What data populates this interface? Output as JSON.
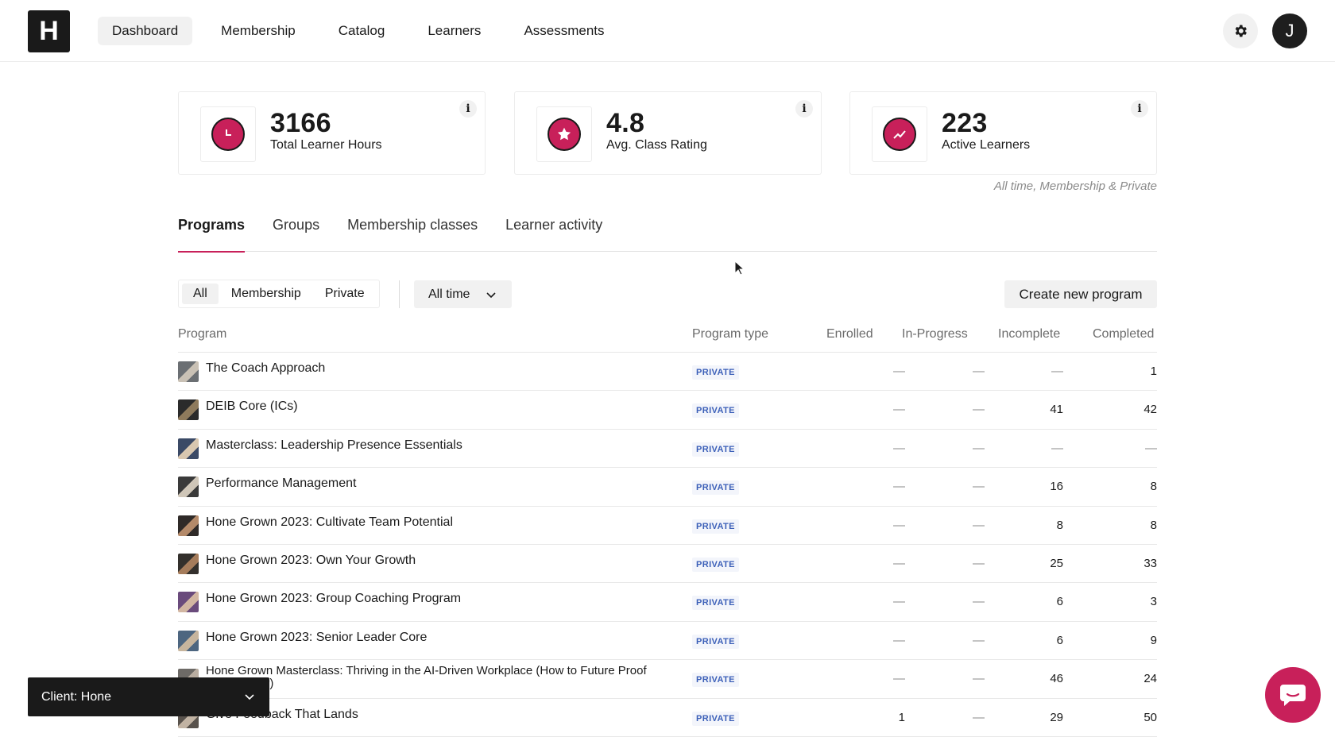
{
  "brand": {
    "logo_letter": "H"
  },
  "nav": {
    "items": [
      {
        "label": "Dashboard",
        "active": true
      },
      {
        "label": "Membership",
        "active": false
      },
      {
        "label": "Catalog",
        "active": false
      },
      {
        "label": "Learners",
        "active": false
      },
      {
        "label": "Assessments",
        "active": false
      }
    ],
    "settings_icon": "gear-icon",
    "avatar_initial": "J"
  },
  "stats": [
    {
      "value": "3166",
      "label": "Total Learner Hours",
      "icon": "clock-icon",
      "info": "i"
    },
    {
      "value": "4.8",
      "label": "Avg. Class Rating",
      "icon": "star-icon",
      "info": "i"
    },
    {
      "value": "223",
      "label": "Active Learners",
      "icon": "trend-up-icon",
      "info": "i"
    }
  ],
  "stats_note": "All time, Membership & Private",
  "accent_color": "#c8205a",
  "tabs": [
    {
      "label": "Programs",
      "active": true
    },
    {
      "label": "Groups",
      "active": false
    },
    {
      "label": "Membership classes",
      "active": false
    },
    {
      "label": "Learner activity",
      "active": false
    }
  ],
  "filters": {
    "segments": [
      {
        "label": "All",
        "active": true
      },
      {
        "label": "Membership",
        "active": false
      },
      {
        "label": "Private",
        "active": false
      }
    ],
    "time_range": "All time",
    "create_label": "Create new program"
  },
  "table": {
    "headers": [
      "Program",
      "Program type",
      "Enrolled",
      "In-Progress",
      "Incomplete",
      "Completed"
    ],
    "rows": [
      {
        "name": "The Coach Approach",
        "type": "PRIVATE",
        "enrolled": "—",
        "in_progress": "—",
        "incomplete": "—",
        "completed": "1"
      },
      {
        "name": "DEIB Core (ICs)",
        "type": "PRIVATE",
        "enrolled": "—",
        "in_progress": "—",
        "incomplete": "41",
        "completed": "42"
      },
      {
        "name": "Masterclass: Leadership Presence Essentials",
        "type": "PRIVATE",
        "enrolled": "—",
        "in_progress": "—",
        "incomplete": "—",
        "completed": "—"
      },
      {
        "name": "Performance Management",
        "type": "PRIVATE",
        "enrolled": "—",
        "in_progress": "—",
        "incomplete": "16",
        "completed": "8"
      },
      {
        "name": "Hone Grown 2023: Cultivate Team Potential",
        "type": "PRIVATE",
        "enrolled": "—",
        "in_progress": "—",
        "incomplete": "8",
        "completed": "8"
      },
      {
        "name": "Hone Grown 2023: Own Your Growth",
        "type": "PRIVATE",
        "enrolled": "—",
        "in_progress": "—",
        "incomplete": "25",
        "completed": "33"
      },
      {
        "name": "Hone Grown 2023: Group Coaching Program",
        "type": "PRIVATE",
        "enrolled": "—",
        "in_progress": "—",
        "incomplete": "6",
        "completed": "3"
      },
      {
        "name": "Hone Grown 2023: Senior Leader Core",
        "type": "PRIVATE",
        "enrolled": "—",
        "in_progress": "—",
        "incomplete": "6",
        "completed": "9"
      },
      {
        "name": "Hone Grown Masterclass: Thriving in the AI-Driven Workplace (How to Future Proof Your Career)",
        "type": "PRIVATE",
        "enrolled": "—",
        "in_progress": "—",
        "incomplete": "46",
        "completed": "24"
      },
      {
        "name": "Give Feedback That Lands",
        "type": "PRIVATE",
        "enrolled": "1",
        "in_progress": "—",
        "incomplete": "29",
        "completed": "50"
      }
    ]
  },
  "client_selector": {
    "label": "Client: Hone"
  },
  "chat_icon": "chat-bubble-icon"
}
